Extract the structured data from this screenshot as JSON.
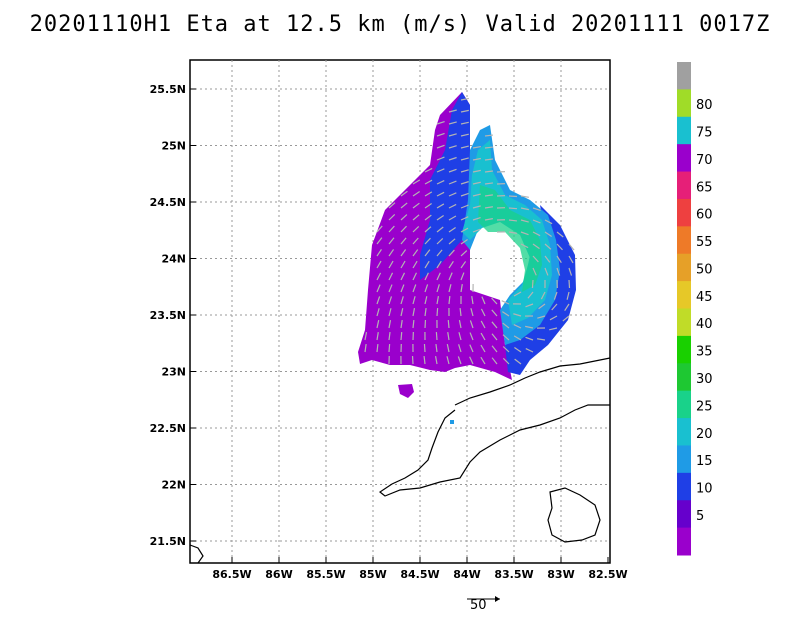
{
  "title": "20201110H1 Eta at 12.5 km (m/s) Valid 20201111 0017Z",
  "lat_labels": [
    "25.5N",
    "25N",
    "24.5N",
    "24N",
    "23.5N",
    "23N",
    "22.5N",
    "22N",
    "21.5N"
  ],
  "lon_labels": [
    "86.5W",
    "86W",
    "85.5W",
    "85W",
    "84.5W",
    "84W",
    "83.5W",
    "83W",
    "82.5W"
  ],
  "colorbar": {
    "labels": [
      "5",
      "10",
      "15",
      "20",
      "25",
      "30",
      "35",
      "40",
      "45",
      "50",
      "55",
      "60",
      "65",
      "70",
      "75",
      "80"
    ],
    "colors": [
      "#9a00cc",
      "#6600cc",
      "#1f3fe6",
      "#1f9be6",
      "#19c0d0",
      "#19d28a",
      "#1ec832",
      "#19d000",
      "#c0dc28",
      "#e6c828",
      "#e6a028",
      "#ee7a28",
      "#ee4040",
      "#e61f78",
      "#9a00cc",
      "#19c0d0",
      "#a0dc28",
      "#a0a0a0"
    ]
  },
  "vector_scale": {
    "label": "50"
  }
}
